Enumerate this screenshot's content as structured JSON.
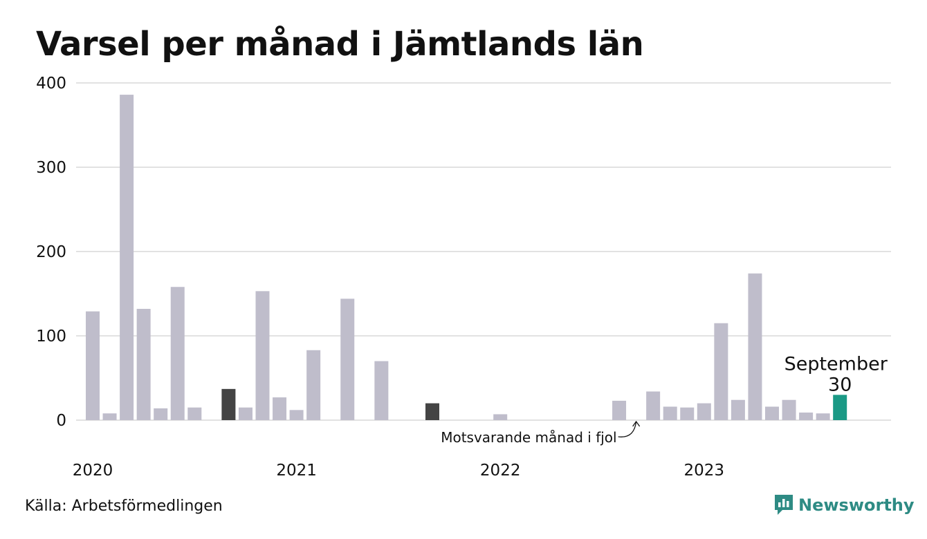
{
  "title": "Varsel per månad i Jämtlands län",
  "source": "Källa: Arbetsförmedlingen",
  "brand": {
    "name": "Newsworthy",
    "icon": "newsworthy-logo-icon",
    "color": "#2e8b84"
  },
  "chart_data": {
    "type": "bar",
    "title": "Varsel per månad i Jämtlands län",
    "ylim": [
      0,
      400
    ],
    "yticks": [
      0,
      100,
      200,
      300,
      400
    ],
    "grid": true,
    "x_labels": [
      "2020",
      "2021",
      "2022",
      "2023"
    ],
    "categories": [
      "2020-01",
      "2020-02",
      "2020-03",
      "2020-04",
      "2020-05",
      "2020-06",
      "2020-07",
      "2020-08",
      "2020-09",
      "2020-10",
      "2020-11",
      "2020-12",
      "2021-01",
      "2021-02",
      "2021-03",
      "2021-04",
      "2021-05",
      "2021-06",
      "2021-07",
      "2021-08",
      "2021-09",
      "2021-10",
      "2021-11",
      "2021-12",
      "2022-01",
      "2022-02",
      "2022-03",
      "2022-04",
      "2022-05",
      "2022-06",
      "2022-07",
      "2022-08",
      "2022-09",
      "2022-10",
      "2022-11",
      "2022-12",
      "2023-01",
      "2023-02",
      "2023-03",
      "2023-04",
      "2023-05",
      "2023-06",
      "2023-07",
      "2023-08",
      "2023-09"
    ],
    "values": [
      129,
      8,
      386,
      132,
      14,
      158,
      15,
      0,
      37,
      15,
      153,
      27,
      12,
      83,
      0,
      144,
      0,
      70,
      0,
      0,
      20,
      0,
      0,
      0,
      7,
      0,
      0,
      0,
      0,
      0,
      0,
      23,
      0,
      34,
      16,
      15,
      20,
      115,
      24,
      174,
      16,
      24,
      9,
      8,
      30
    ],
    "highlight": {
      "category": "2023-09",
      "label": "September",
      "value_label": "30",
      "color": "#1a9985"
    },
    "comparison": {
      "categories": [
        "2020-09",
        "2021-09"
      ],
      "color": "#444444"
    },
    "annotation": {
      "text": "Motsvarande månad i fjol",
      "category": "2022-09"
    },
    "colors": {
      "bar": "#bfbdcb",
      "grid": "#e2e2e2"
    }
  }
}
